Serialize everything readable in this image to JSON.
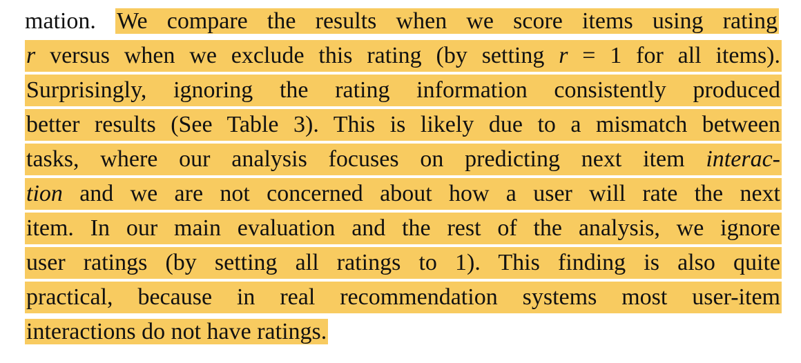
{
  "paragraph": {
    "line1_plain": "mation.",
    "line1_hl": "We compare the results when we score items using rating",
    "line2_a": "r",
    "line2_b": " versus when we exclude this rating (by setting ",
    "line2_c": "r",
    "line2_d": " = 1 for all items).",
    "line3": "Surprisingly, ignoring the rating information consistently produced",
    "line4": "better results (See Table 3). This is likely due to a mismatch between",
    "line5_a": "tasks, where our analysis focuses on predicting next item ",
    "line5_b": "interac-",
    "line6_a": "tion",
    "line6_b": " and we are not concerned about how a user will rate the next",
    "line7": "item. In our main evaluation and the rest of the analysis, we ignore",
    "line8": "user ratings (by setting all ratings to 1). This finding is also quite",
    "line9": "practical, because in real recommendation systems most user-item",
    "line10": "interactions do not have ratings."
  },
  "colors": {
    "highlight": "#f8cb60",
    "text": "#111111"
  }
}
